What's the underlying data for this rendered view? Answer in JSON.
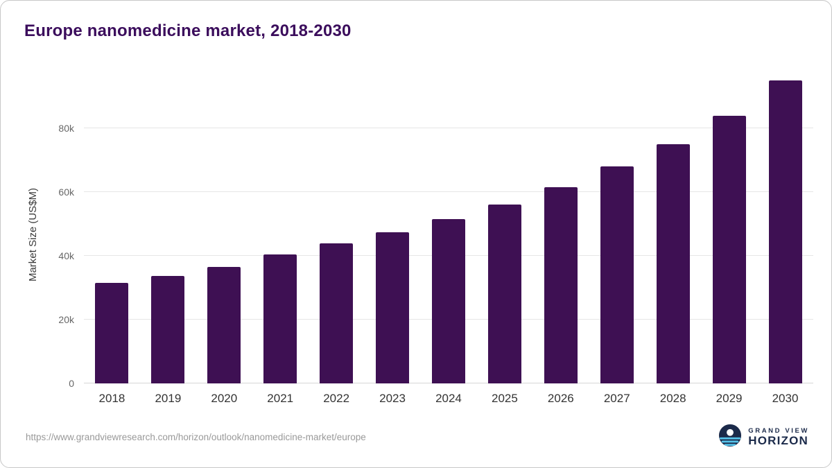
{
  "chart_data": {
    "type": "bar",
    "title": "Europe nanomedicine market, 2018-2030",
    "xlabel": "",
    "ylabel": "Market Size (US$M)",
    "categories": [
      "2018",
      "2019",
      "2020",
      "2021",
      "2022",
      "2023",
      "2024",
      "2025",
      "2026",
      "2027",
      "2028",
      "2029",
      "2030"
    ],
    "values": [
      31500,
      33800,
      36500,
      40500,
      44000,
      47500,
      51500,
      56000,
      61500,
      68000,
      75000,
      84000,
      95000
    ],
    "ylim": [
      0,
      100000
    ],
    "yticks": [
      0,
      20000,
      40000,
      60000,
      80000
    ],
    "ytick_labels": [
      "0",
      "20k",
      "40k",
      "60k",
      "80k"
    ],
    "grid": true,
    "legend": "none",
    "bar_color": "#3e1053"
  },
  "colors": {
    "title": "#3b0d5c",
    "bar": "#3e1053",
    "gridline": "#e6e6e6",
    "logo_navy": "#1b2a4a",
    "logo_blue": "#56c3ea"
  },
  "footer": {
    "source_url": "https://www.grandviewresearch.com/horizon/outlook/nanomedicine-market/europe",
    "logo": {
      "line1": "GRAND VIEW",
      "line2": "HORIZON"
    }
  }
}
